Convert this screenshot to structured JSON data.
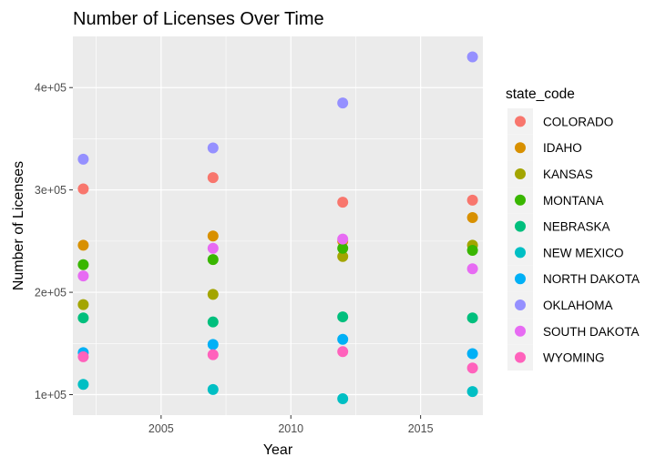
{
  "chart_data": {
    "type": "scatter",
    "title": "Number of Licenses Over Time",
    "xlabel": "Year",
    "ylabel": "Number of Licenses",
    "xlim": [
      2001.6,
      2017.4
    ],
    "ylim": [
      80000,
      450000
    ],
    "x_ticks": [
      2005,
      2010,
      2015
    ],
    "x_tick_labels": [
      "2005",
      "2010",
      "2015"
    ],
    "y_ticks": [
      100000,
      200000,
      300000,
      400000
    ],
    "y_tick_labels": [
      "1e+05",
      "2e+05",
      "3e+05",
      "4e+05"
    ],
    "grid": true,
    "legend_position": "right",
    "legend_title": "state_code",
    "x": [
      2002,
      2007,
      2012,
      2017
    ],
    "series": [
      {
        "name": "COLORADO",
        "color": "#F8766D",
        "values": [
          301000,
          312000,
          288000,
          290000
        ]
      },
      {
        "name": "IDAHO",
        "color": "#D89000",
        "values": [
          246000,
          255000,
          250000,
          273000
        ]
      },
      {
        "name": "KANSAS",
        "color": "#A3A500",
        "values": [
          188000,
          198000,
          235000,
          246000
        ]
      },
      {
        "name": "MONTANA",
        "color": "#39B600",
        "values": [
          227000,
          232000,
          243000,
          241000
        ]
      },
      {
        "name": "NEBRASKA",
        "color": "#00BF7D",
        "values": [
          175000,
          171000,
          176000,
          175000
        ]
      },
      {
        "name": "NEW MEXICO",
        "color": "#00BFC4",
        "values": [
          110000,
          105000,
          96000,
          103000
        ]
      },
      {
        "name": "NORTH DAKOTA",
        "color": "#00B0F6",
        "values": [
          141000,
          149000,
          154000,
          140000
        ]
      },
      {
        "name": "OKLAHOMA",
        "color": "#9590FF",
        "values": [
          330000,
          341000,
          385000,
          430000
        ]
      },
      {
        "name": "SOUTH DAKOTA",
        "color": "#E76BF3",
        "values": [
          216000,
          243000,
          252000,
          223000
        ]
      },
      {
        "name": "WYOMING",
        "color": "#FF62BC",
        "values": [
          137000,
          139000,
          142000,
          126000
        ]
      }
    ]
  }
}
